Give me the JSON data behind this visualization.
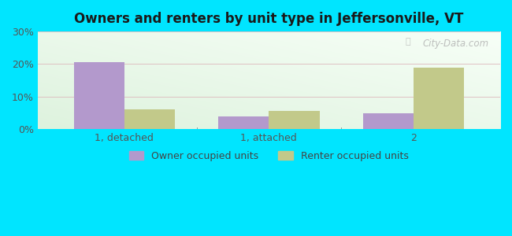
{
  "title": "Owners and renters by unit type in Jeffersonville, VT",
  "categories": [
    "1, detached",
    "1, attached",
    "2"
  ],
  "owner_values": [
    20.5,
    4.0,
    5.0
  ],
  "renter_values": [
    6.0,
    5.5,
    19.0
  ],
  "owner_color": "#b399cc",
  "renter_color": "#c2c98a",
  "ylim": [
    0,
    30
  ],
  "yticks": [
    0,
    10,
    20,
    30
  ],
  "ytick_labels": [
    "0%",
    "10%",
    "20%",
    "30%"
  ],
  "outer_color": "#00e5ff",
  "bar_width": 0.35,
  "legend_owner": "Owner occupied units",
  "legend_renter": "Renter occupied units",
  "watermark": "City-Data.com",
  "title_fontsize": 12,
  "tick_fontsize": 9,
  "legend_fontsize": 9
}
